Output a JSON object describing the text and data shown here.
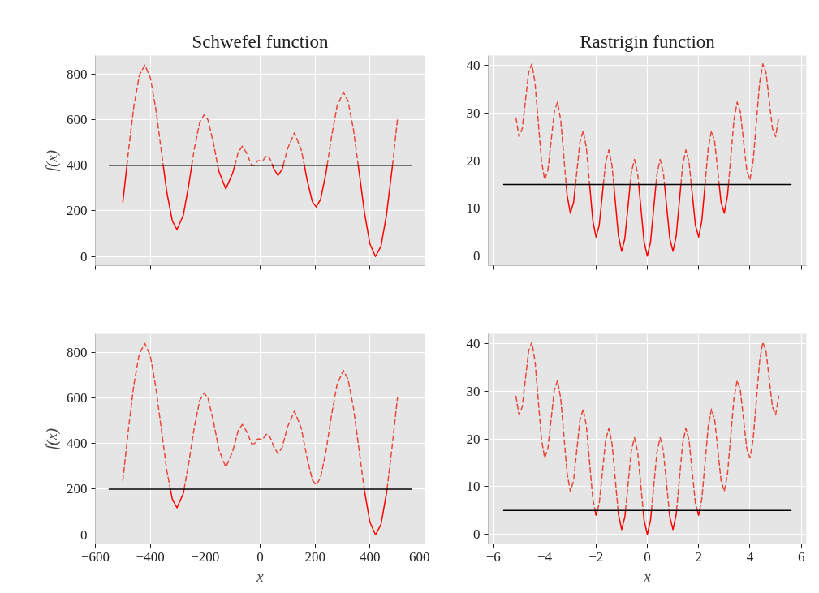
{
  "chart_data": [
    {
      "type": "line",
      "title": "Schwefel function",
      "ylabel": "f(x)",
      "xlim": [
        -600,
        600
      ],
      "ylim": [
        -40,
        880
      ],
      "xticks": [
        {
          "value": -600,
          "label": null
        },
        {
          "value": -400,
          "label": null
        },
        {
          "value": -200,
          "label": null
        },
        {
          "value": 0,
          "label": null
        },
        {
          "value": 200,
          "label": null
        },
        {
          "value": 400,
          "label": null
        },
        {
          "value": 600,
          "label": null
        }
      ],
      "yticks": [
        0,
        200,
        400,
        600,
        800
      ],
      "tick_labels": "y",
      "grid": true,
      "series": [
        {
          "color": "#ff0000",
          "line_style": "solid",
          "x": [
            -500,
            -485,
            -420,
            -353,
            -340,
            -320,
            -303,
            -280,
            -260,
            -249,
            -200,
            -155,
            -150,
            -125,
            -100,
            -92,
            10,
            45,
            50,
            65,
            80,
            84,
            120,
            161,
            170,
            190,
            204,
            220,
            240,
            244,
            300,
            357,
            360,
            380,
            400,
            420,
            440,
            460,
            480,
            482
          ],
          "values": [
            238,
            400,
            null,
            400,
            283,
            157,
            118,
            180,
            314,
            400,
            null,
            400,
            372,
            296,
            365,
            400,
            null,
            400,
            384,
            355,
            382,
            400,
            null,
            400,
            341,
            240,
            217,
            250,
            368,
            400,
            null,
            400,
            374,
            191,
            54,
            0,
            45,
            182,
            380,
            400
          ]
        },
        {
          "color": "#e8473a",
          "line_style": "dashed",
          "x": [
            -485,
            -480,
            -460,
            -440,
            -420,
            -400,
            -380,
            -360,
            -353,
            -300,
            -249,
            -240,
            -220,
            -204,
            -190,
            -170,
            -155,
            -120,
            -92,
            -80,
            -65,
            -50,
            -30,
            -20,
            -10,
            0,
            10,
            20,
            30,
            40,
            45,
            65,
            84,
            100,
            125,
            150,
            161,
            200,
            244,
            260,
            280,
            303,
            320,
            340,
            357,
            420,
            482,
            500
          ],
          "values": [
            400,
            458,
            656,
            793,
            838,
            784,
            647,
            464,
            400,
            null,
            400,
            470,
            588,
            621,
            598,
            497,
            400,
            null,
            400,
            456,
            483,
            454,
            397,
            400,
            419,
            419,
            419,
            438,
            441,
            417,
            400,
            null,
            400,
            473,
            542,
            466,
            400,
            null,
            400,
            524,
            658,
            720,
            681,
            555,
            400,
            null,
            400,
            600
          ]
        },
        {
          "color": "#000000",
          "line_style": "solid",
          "x": [
            -550,
            550
          ],
          "values": [
            400,
            400
          ]
        }
      ]
    },
    {
      "type": "line",
      "title": "Rastrigin function",
      "xlim": [
        -6.2,
        6.2
      ],
      "ylim": [
        -2,
        42
      ],
      "xticks": [
        {
          "value": -6,
          "label": null
        },
        {
          "value": -4,
          "label": null
        },
        {
          "value": -2,
          "label": null
        },
        {
          "value": 0,
          "label": null
        },
        {
          "value": 2,
          "label": null
        },
        {
          "value": 4,
          "label": null
        },
        {
          "value": 6,
          "label": null
        }
      ],
      "yticks": [
        0,
        10,
        20,
        30,
        40
      ],
      "tick_labels": "y",
      "grid": true,
      "series": [
        {
          "color": "#ff0000",
          "line_style": "solid",
          "x": [
            -3.162,
            -3.125,
            -3,
            -2.875,
            -2.8,
            -2.5,
            -2.249,
            -2.125,
            -2,
            -1.875,
            -1.75,
            -1.714,
            -1.5,
            -1.308,
            -1.25,
            -1.125,
            -1,
            -0.875,
            -0.75,
            -0.67,
            -0.5,
            -0.336,
            -0.25,
            -0.125,
            0,
            0.125,
            0.25,
            0.336,
            0.5,
            0.67,
            0.75,
            0.875,
            1,
            1.125,
            1.25,
            1.308,
            1.5,
            1.714,
            1.75,
            1.875,
            2,
            2.125,
            2.249,
            2.5,
            2.8,
            2.875,
            3,
            3.125,
            3.162
          ],
          "values": [
            15,
            12.7,
            9,
            11.2,
            15,
            null,
            15,
            7.45,
            4,
            6.45,
            13.06,
            15,
            null,
            15,
            11.56,
            4.2,
            1,
            3.7,
            10.56,
            15,
            null,
            15,
            10.06,
            2.95,
            0,
            2.95,
            10.06,
            15,
            null,
            15,
            10.56,
            3.7,
            1,
            4.2,
            11.56,
            15,
            null,
            15,
            13.06,
            6.45,
            4,
            7.45,
            15,
            null,
            15,
            11.2,
            9,
            12.7,
            15
          ]
        },
        {
          "color": "#e8473a",
          "line_style": "dashed",
          "x": [
            -5.12,
            -5,
            -4.875,
            -4.75,
            -4.625,
            -4.5,
            -4.375,
            -4.25,
            -4.125,
            -4,
            -3.875,
            -3.75,
            -3.625,
            -3.5,
            -3.375,
            -3.25,
            -3.162,
            -3,
            -2.8,
            -2.75,
            -2.625,
            -2.5,
            -2.375,
            -2.249,
            -2,
            -1.714,
            -1.625,
            -1.5,
            -1.375,
            -1.308,
            -1,
            -0.67,
            -0.625,
            -0.5,
            -0.375,
            -0.336,
            0,
            0.336,
            0.375,
            0.5,
            0.625,
            0.67,
            1,
            1.308,
            1.375,
            1.5,
            1.625,
            1.714,
            2,
            2.249,
            2.375,
            2.5,
            2.625,
            2.75,
            2.8,
            3,
            3.162,
            3.25,
            3.375,
            3.5,
            3.625,
            3.75,
            3.875,
            4,
            4.125,
            4.25,
            4.375,
            4.5,
            4.625,
            4.75,
            4.875,
            5,
            5.12
          ],
          "values": [
            28.92,
            25,
            26.7,
            32.56,
            38.46,
            40.25,
            36.21,
            28.06,
            19.95,
            16,
            17.95,
            24.06,
            30.21,
            32.25,
            28.46,
            20.56,
            15,
            null,
            15,
            17.56,
            23.96,
            26.25,
            22.71,
            15,
            null,
            15,
            19.71,
            22.25,
            18.96,
            15,
            null,
            15,
            17.46,
            20.25,
            17.21,
            15,
            null,
            15,
            17.21,
            20.25,
            17.46,
            15,
            null,
            15,
            18.96,
            22.25,
            19.71,
            15,
            null,
            15,
            22.71,
            26.25,
            23.96,
            17.56,
            15,
            null,
            15,
            20.56,
            28.46,
            32.25,
            30.21,
            24.06,
            17.95,
            16,
            19.95,
            28.06,
            36.21,
            40.25,
            38.46,
            32.56,
            26.7,
            25,
            28.92
          ]
        },
        {
          "color": "#000000",
          "line_style": "solid",
          "x": [
            -5.6,
            5.6
          ],
          "values": [
            15,
            15
          ]
        }
      ]
    },
    {
      "type": "line",
      "xlabel": "x",
      "ylabel": "f(x)",
      "xlim": [
        -600,
        600
      ],
      "ylim": [
        -40,
        880
      ],
      "xticks": [
        {
          "value": -600,
          "label": "−600"
        },
        {
          "value": -400,
          "label": "−400"
        },
        {
          "value": -200,
          "label": "−200"
        },
        0,
        200,
        400,
        600
      ],
      "yticks": [
        0,
        200,
        400,
        600,
        800
      ],
      "grid": true,
      "series": [
        {
          "color": "#ff0000",
          "line_style": "solid",
          "x": [
            -327,
            -320,
            -303,
            -280,
            -277,
            50,
            379,
            380,
            400,
            420,
            440,
            460,
            462
          ],
          "values": [
            200,
            157,
            118,
            180,
            200,
            null,
            200,
            191,
            54,
            0,
            45,
            182,
            200
          ]
        },
        {
          "color": "#e8473a",
          "line_style": "dashed",
          "x": [
            -500,
            -480,
            -460,
            -440,
            -420,
            -400,
            -380,
            -360,
            -340,
            -327,
            -300,
            -277,
            -260,
            -240,
            -220,
            -204,
            -190,
            -170,
            -150,
            -125,
            -100,
            -80,
            -65,
            -50,
            -30,
            -20,
            -10,
            0,
            10,
            20,
            30,
            40,
            50,
            65,
            80,
            100,
            125,
            150,
            170,
            190,
            204,
            220,
            240,
            260,
            280,
            303,
            320,
            340,
            360,
            379,
            420,
            462,
            480,
            500
          ],
          "values": [
            238,
            458,
            656,
            793,
            838,
            784,
            647,
            464,
            283,
            200,
            null,
            200,
            314,
            470,
            588,
            621,
            598,
            497,
            372,
            296,
            365,
            456,
            483,
            454,
            397,
            400,
            419,
            419,
            419,
            438,
            441,
            417,
            384,
            355,
            382,
            473,
            542,
            466,
            341,
            240,
            217,
            250,
            368,
            524,
            658,
            720,
            681,
            555,
            374,
            200,
            null,
            200,
            380,
            600
          ]
        },
        {
          "color": "#000000",
          "line_style": "solid",
          "x": [
            -550,
            550
          ],
          "values": [
            200,
            200
          ]
        }
      ]
    },
    {
      "type": "line",
      "xlabel": "x",
      "xlim": [
        -6.2,
        6.2
      ],
      "ylim": [
        -2,
        42
      ],
      "xticks": [
        {
          "value": -6,
          "label": "−6"
        },
        {
          "value": -4,
          "label": "−4"
        },
        {
          "value": -2,
          "label": "−2"
        },
        0,
        2,
        4,
        6
      ],
      "yticks": [
        0,
        10,
        20,
        30,
        40
      ],
      "grid": true,
      "series": [
        {
          "color": "#ff0000",
          "line_style": "solid",
          "x": [
            -2.036,
            -2,
            -1.949,
            -1.5,
            -1.139,
            -1.125,
            -1,
            -0.875,
            -0.851,
            -0.5,
            -0.161,
            -0.125,
            0,
            0.125,
            0.161,
            0.5,
            0.851,
            0.875,
            1,
            1.125,
            1.139,
            1.5,
            1.949,
            2,
            2.036
          ],
          "values": [
            5,
            4,
            5,
            null,
            5,
            4.2,
            1,
            3.7,
            5,
            null,
            5,
            2.95,
            0,
            2.95,
            5,
            null,
            5,
            3.7,
            1,
            4.2,
            5,
            null,
            5,
            4,
            5
          ]
        },
        {
          "color": "#e8473a",
          "line_style": "dashed",
          "x": [
            -5.12,
            -5,
            -4.875,
            -4.75,
            -4.625,
            -4.5,
            -4.375,
            -4.25,
            -4.125,
            -4,
            -3.875,
            -3.75,
            -3.625,
            -3.5,
            -3.375,
            -3.25,
            -3.125,
            -3,
            -2.875,
            -2.75,
            -2.625,
            -2.5,
            -2.375,
            -2.25,
            -2.125,
            -2.036,
            -2,
            -1.949,
            -1.875,
            -1.75,
            -1.625,
            -1.5,
            -1.375,
            -1.25,
            -1.139,
            -1,
            -0.851,
            -0.75,
            -0.625,
            -0.5,
            -0.375,
            -0.25,
            -0.161,
            0,
            0.161,
            0.25,
            0.375,
            0.5,
            0.625,
            0.75,
            0.851,
            1,
            1.139,
            1.25,
            1.375,
            1.5,
            1.625,
            1.75,
            1.875,
            1.949,
            2,
            2.036,
            2.125,
            2.25,
            2.375,
            2.5,
            2.625,
            2.75,
            2.875,
            3,
            3.125,
            3.25,
            3.375,
            3.5,
            3.625,
            3.75,
            3.875,
            4,
            4.125,
            4.25,
            4.375,
            4.5,
            4.625,
            4.75,
            4.875,
            5,
            5.12
          ],
          "values": [
            28.92,
            25,
            26.7,
            32.56,
            38.46,
            40.25,
            36.21,
            28.06,
            19.95,
            16,
            17.95,
            24.06,
            30.21,
            32.25,
            28.46,
            20.56,
            12.7,
            9,
            11.2,
            17.56,
            23.96,
            26.25,
            22.71,
            15.06,
            7.45,
            5,
            null,
            5,
            6.45,
            13.06,
            19.71,
            22.25,
            18.96,
            11.56,
            5,
            null,
            5,
            10.56,
            17.46,
            20.25,
            17.21,
            10.06,
            5,
            null,
            5,
            10.06,
            17.21,
            20.25,
            17.46,
            10.56,
            5,
            null,
            5,
            11.56,
            18.96,
            22.25,
            19.71,
            13.06,
            6.45,
            5,
            null,
            5,
            7.45,
            15.06,
            22.71,
            26.25,
            23.96,
            17.56,
            11.2,
            9,
            12.7,
            20.56,
            28.46,
            32.25,
            30.21,
            24.06,
            17.95,
            16,
            19.95,
            28.06,
            36.21,
            40.25,
            38.46,
            32.56,
            26.7,
            25,
            28.92
          ]
        },
        {
          "color": "#000000",
          "line_style": "solid",
          "x": [
            -5.6,
            5.6
          ],
          "values": [
            5,
            5
          ]
        }
      ]
    }
  ]
}
